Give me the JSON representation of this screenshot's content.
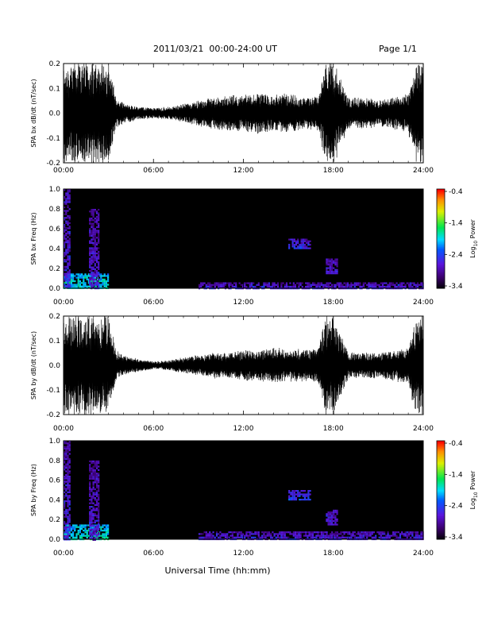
{
  "header": {
    "title": "2011/03/21  00:00-24:00 UT",
    "page": "Page 1/1"
  },
  "xaxis": {
    "label": "Universal Time (hh:mm)",
    "ticks": [
      "00:00",
      "06:00",
      "12:00",
      "18:00",
      "24:00"
    ],
    "range_hours": [
      0,
      24
    ]
  },
  "colorbar": {
    "label": "Log10 Power",
    "label_main": "Log",
    "label_sub": "10",
    "label_tail": " Power",
    "ticks": [
      "-0.4",
      "-1.4",
      "-2.4",
      "-3.4"
    ],
    "range": [
      -3.4,
      -0.4
    ]
  },
  "colors": {
    "trace": "#000000",
    "spectrogram_background": "#000000"
  },
  "chart_data": [
    {
      "type": "line",
      "ylabel": "SPA bx dB/dt (nT/sec)",
      "ylim": [
        -0.2,
        0.2
      ],
      "yticks": [
        "0.2",
        "0.1",
        "0.0",
        "-0.1",
        "-0.2"
      ],
      "envelope_hours": [
        0,
        0.5,
        1,
        1.5,
        2,
        2.5,
        3,
        3.5,
        4,
        5,
        6,
        7,
        8,
        9,
        10,
        11,
        12,
        13,
        14,
        15,
        16,
        17,
        17.5,
        18,
        19,
        20,
        21,
        22,
        23,
        23.5,
        24
      ],
      "envelope_amplitude": [
        0.2,
        0.2,
        0.2,
        0.2,
        0.2,
        0.2,
        0.2,
        0.06,
        0.04,
        0.025,
        0.02,
        0.025,
        0.035,
        0.05,
        0.06,
        0.07,
        0.07,
        0.08,
        0.07,
        0.08,
        0.06,
        0.07,
        0.2,
        0.2,
        0.06,
        0.06,
        0.05,
        0.06,
        0.08,
        0.2,
        0.2
      ]
    },
    {
      "type": "heatmap",
      "ylabel": "SPA bx Freq (Hz)",
      "ylim": [
        0,
        1
      ],
      "yticks": [
        "1.0",
        "0.8",
        "0.6",
        "0.4",
        "0.2",
        "0.0"
      ],
      "zlim": [
        -3.4,
        -0.4
      ],
      "features": [
        {
          "hours": [
            0,
            3
          ],
          "freq": [
            0,
            0.15
          ],
          "level": -1.8
        },
        {
          "hours": [
            0,
            0.4
          ],
          "freq": [
            0,
            1
          ],
          "level": -2.6
        },
        {
          "hours": [
            1.7,
            2.3
          ],
          "freq": [
            0,
            0.8
          ],
          "level": -2.7
        },
        {
          "hours": [
            9,
            24
          ],
          "freq": [
            0,
            0.06
          ],
          "level": -2.6
        },
        {
          "hours": [
            15,
            16.5
          ],
          "freq": [
            0.4,
            0.5
          ],
          "level": -2.5
        },
        {
          "hours": [
            17.5,
            18.2
          ],
          "freq": [
            0.15,
            0.3
          ],
          "level": -2.6
        }
      ]
    },
    {
      "type": "line",
      "ylabel": "SPA by dB/dt (nT/sec)",
      "ylim": [
        -0.2,
        0.2
      ],
      "yticks": [
        "0.2",
        "0.1",
        "0.0",
        "-0.1",
        "-0.2"
      ],
      "envelope_hours": [
        0,
        0.5,
        1,
        1.5,
        2,
        2.5,
        3,
        3.5,
        4,
        5,
        6,
        7,
        8,
        9,
        10,
        11,
        12,
        13,
        14,
        15,
        16,
        17,
        17.5,
        18,
        19,
        20,
        21,
        22,
        23,
        23.5,
        24
      ],
      "envelope_amplitude": [
        0.2,
        0.2,
        0.2,
        0.2,
        0.2,
        0.2,
        0.2,
        0.06,
        0.04,
        0.025,
        0.015,
        0.02,
        0.03,
        0.04,
        0.05,
        0.05,
        0.06,
        0.06,
        0.07,
        0.06,
        0.06,
        0.07,
        0.2,
        0.2,
        0.05,
        0.05,
        0.05,
        0.06,
        0.07,
        0.2,
        0.2
      ]
    },
    {
      "type": "heatmap",
      "ylabel": "SPA by Freq (Hz)",
      "ylim": [
        0,
        1
      ],
      "yticks": [
        "1.0",
        "0.8",
        "0.6",
        "0.4",
        "0.2",
        "0.0"
      ],
      "zlim": [
        -3.4,
        -0.4
      ],
      "features": [
        {
          "hours": [
            0,
            3
          ],
          "freq": [
            0,
            0.15
          ],
          "level": -1.8
        },
        {
          "hours": [
            0,
            0.4
          ],
          "freq": [
            0,
            1
          ],
          "level": -2.6
        },
        {
          "hours": [
            1.7,
            2.3
          ],
          "freq": [
            0,
            0.8
          ],
          "level": -2.7
        },
        {
          "hours": [
            9,
            24
          ],
          "freq": [
            0,
            0.08
          ],
          "level": -2.6
        },
        {
          "hours": [
            15,
            16.5
          ],
          "freq": [
            0.4,
            0.5
          ],
          "level": -2.4
        },
        {
          "hours": [
            17.5,
            18.2
          ],
          "freq": [
            0.15,
            0.3
          ],
          "level": -2.6
        }
      ]
    }
  ]
}
